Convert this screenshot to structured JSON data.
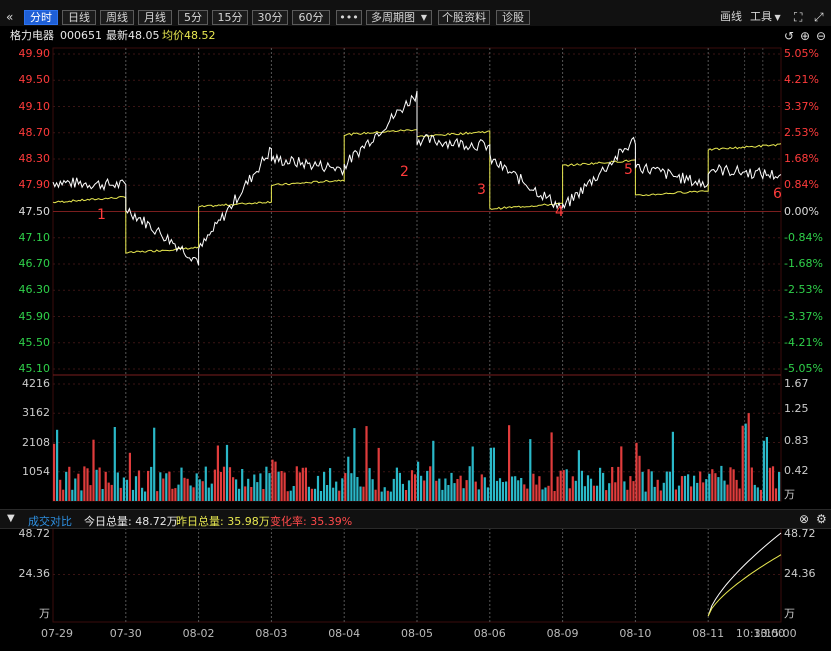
{
  "toolbar": {
    "back_icon": "chevron-left-icon",
    "tabs": [
      "分时",
      "日线",
      "周线",
      "月线",
      "5分",
      "15分",
      "30分",
      "60分"
    ],
    "active_tab": "分时",
    "more_label": "•••",
    "multi_period_label": "多周期图",
    "stock_info_label": "个股资料",
    "diagnose_label": "诊股",
    "draw_label": "画线",
    "tools_label": "工具"
  },
  "info": {
    "name": "格力电器",
    "code": "000651",
    "latest_label": "最新48.05",
    "avg_label": "均价48.52"
  },
  "price_axis": {
    "left": [
      "49.90",
      "49.50",
      "49.10",
      "48.70",
      "48.30",
      "47.90",
      "47.50",
      "47.10",
      "46.70",
      "46.30",
      "45.90",
      "45.50",
      "45.10"
    ],
    "right": [
      "5.05%",
      "4.21%",
      "3.37%",
      "2.53%",
      "1.68%",
      "0.84%",
      "0.00%",
      "-0.84%",
      "-1.68%",
      "-2.53%",
      "-3.37%",
      "-4.21%",
      "-5.05%"
    ]
  },
  "volume_axis": {
    "left": [
      "4216",
      "3162",
      "2108",
      "1054"
    ],
    "right": [
      "1.67",
      "1.25",
      "0.83",
      "0.42",
      "万"
    ]
  },
  "compare_bar": {
    "title": "成交对比",
    "today_label": "今日总量: 48.72万",
    "yesterday_label": "昨日总量: 35.98万",
    "change_label": "变化率: 35.39%"
  },
  "compare_axis": {
    "left": [
      "48.72",
      "24.36",
      "万"
    ],
    "right": [
      "48.72",
      "24.36",
      "万"
    ]
  },
  "x_axis": [
    "07-29",
    "07-30",
    "08-02",
    "08-03",
    "08-04",
    "08-05",
    "08-06",
    "08-09",
    "08-10",
    "08-11",
    "10:30",
    "13:00",
    "15:00"
  ],
  "annotations": [
    "1",
    "2",
    "3",
    "4",
    "5",
    "6"
  ],
  "colors": {
    "up": "#ff3b3b",
    "down": "#2fd14a",
    "price_line": "#ffffff",
    "avg_line": "#e8e850",
    "vol_up": "#e03c3c",
    "vol_down": "#2ab8c8"
  },
  "chart_data": [
    {
      "type": "line",
      "x": [
        "07-29",
        "07-30",
        "08-02",
        "08-03",
        "08-04",
        "08-05",
        "08-06",
        "08-09",
        "08-10",
        "08-11"
      ],
      "series": [
        {
          "name": "最新",
          "values": [
            47.9,
            46.75,
            48.45,
            48.15,
            49.3,
            48.5,
            47.55,
            48.6,
            47.9,
            48.05
          ]
        },
        {
          "name": "均价",
          "values": [
            47.72,
            46.95,
            47.65,
            47.98,
            48.75,
            48.72,
            47.62,
            48.28,
            47.82,
            48.52
          ]
        }
      ],
      "ylim": [
        45.1,
        49.9
      ]
    },
    {
      "type": "bar",
      "ylim": [
        0,
        4216
      ]
    },
    {
      "type": "line",
      "series": [
        {
          "name": "今日总量",
          "values": [
            0,
            48.72
          ]
        },
        {
          "name": "昨日总量",
          "values": [
            0,
            35.98
          ]
        }
      ],
      "ylim": [
        0,
        48.72
      ]
    }
  ]
}
